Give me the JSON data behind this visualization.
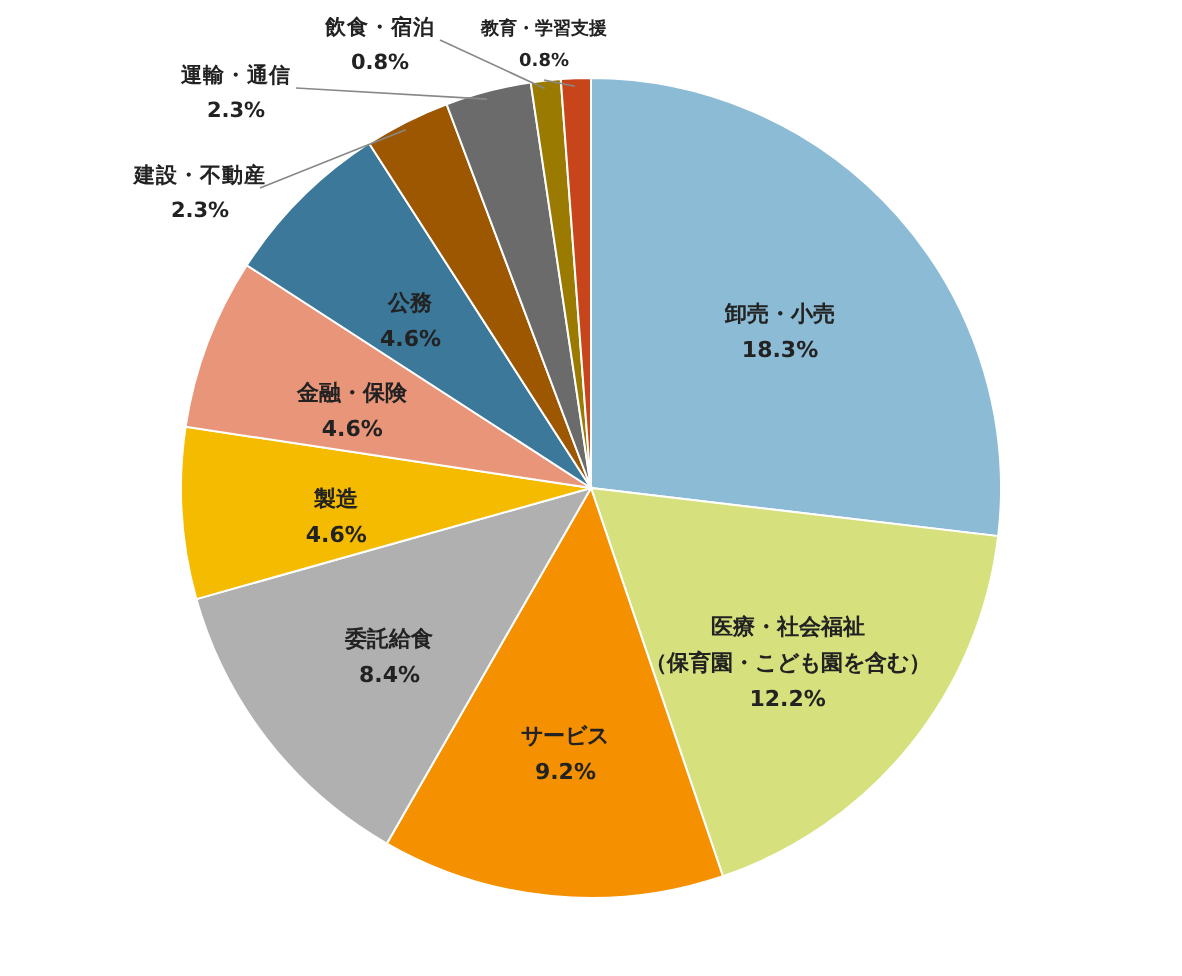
{
  "chart_data": {
    "type": "pie",
    "categories": [
      "卸売・小売",
      "医療・社会福祉（保育園・こども園を含む）",
      "サービス",
      "委託給食",
      "製造",
      "金融・保険",
      "公務",
      "建設・不動産",
      "運輸・通信",
      "飲食・宿泊",
      "教育・学習支援"
    ],
    "values": [
      18.3,
      12.2,
      9.2,
      8.4,
      4.6,
      4.6,
      4.6,
      2.3,
      2.3,
      0.8,
      0.8
    ],
    "colors": [
      "#8cbbd6",
      "#d6e07c",
      "#f59100",
      "#b0b0b0",
      "#f5bb00",
      "#e8957a",
      "#3b7899",
      "#9c5700",
      "#6b6b6b",
      "#9a7a00",
      "#c8441a"
    ],
    "value_labels": [
      "18.3%",
      "12.2%",
      "9.2%",
      "8.4%",
      "4.6%",
      "4.6%",
      "4.6%",
      "2.3%",
      "2.3%",
      "0.8%",
      "0.8%"
    ]
  }
}
